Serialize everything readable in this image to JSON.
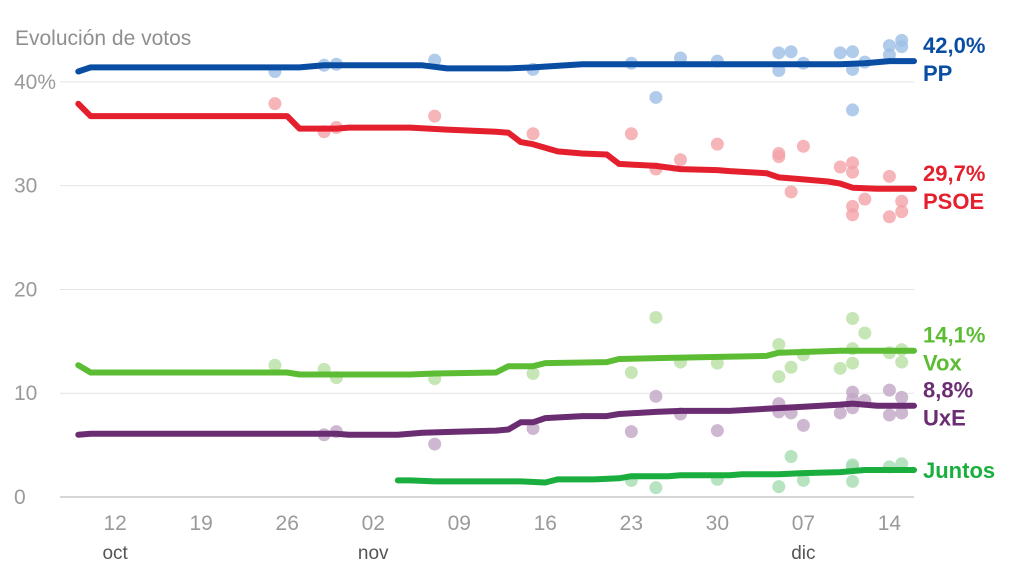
{
  "chart_data": {
    "type": "line",
    "title": "Evolución de votos",
    "ylim": [
      0,
      45
    ],
    "xlim": [
      "2023-10-08",
      "2023-12-16"
    ],
    "grid": "horizontal",
    "y_ticks": [
      {
        "value": 40,
        "label": "40%"
      },
      {
        "value": 30,
        "label": "30"
      },
      {
        "value": 20,
        "label": "20"
      },
      {
        "value": 10,
        "label": "10"
      },
      {
        "value": 0,
        "label": "0"
      }
    ],
    "x_ticks": [
      {
        "date": "2023-10-12",
        "label": "12",
        "month": "oct"
      },
      {
        "date": "2023-10-19",
        "label": "19",
        "month": ""
      },
      {
        "date": "2023-10-26",
        "label": "26",
        "month": ""
      },
      {
        "date": "2023-11-02",
        "label": "02",
        "month": "nov"
      },
      {
        "date": "2023-11-09",
        "label": "09",
        "month": ""
      },
      {
        "date": "2023-11-16",
        "label": "16",
        "month": ""
      },
      {
        "date": "2023-11-23",
        "label": "23",
        "month": ""
      },
      {
        "date": "2023-11-30",
        "label": "30",
        "month": ""
      },
      {
        "date": "2023-12-07",
        "label": "07",
        "month": "dic"
      },
      {
        "date": "2023-12-14",
        "label": "14",
        "month": ""
      }
    ],
    "series": [
      {
        "name": "PP",
        "end_label": "42,0%",
        "color": "#0a4ea3",
        "dot_color": "#9dbfe6",
        "line": [
          [
            "2023-10-09",
            41.0
          ],
          [
            "2023-10-10",
            41.4
          ],
          [
            "2023-10-25",
            41.4
          ],
          [
            "2023-10-27",
            41.4
          ],
          [
            "2023-10-29",
            41.6
          ],
          [
            "2023-11-06",
            41.6
          ],
          [
            "2023-11-08",
            41.3
          ],
          [
            "2023-11-13",
            41.3
          ],
          [
            "2023-11-15",
            41.4
          ],
          [
            "2023-11-19",
            41.7
          ],
          [
            "2023-11-23",
            41.7
          ],
          [
            "2023-11-25",
            41.7
          ],
          [
            "2023-12-06",
            41.7
          ],
          [
            "2023-12-10",
            41.7
          ],
          [
            "2023-12-12",
            41.8
          ],
          [
            "2023-12-14",
            42.0
          ],
          [
            "2023-12-16",
            42.0
          ]
        ],
        "polls": [
          [
            "2023-10-25",
            41.0
          ],
          [
            "2023-10-29",
            41.6
          ],
          [
            "2023-10-30",
            41.7
          ],
          [
            "2023-11-07",
            42.1
          ],
          [
            "2023-11-15",
            41.2
          ],
          [
            "2023-11-23",
            41.8
          ],
          [
            "2023-11-25",
            38.5
          ],
          [
            "2023-11-27",
            42.3
          ],
          [
            "2023-11-30",
            42.0
          ],
          [
            "2023-12-05",
            42.8
          ],
          [
            "2023-12-05",
            41.1
          ],
          [
            "2023-12-06",
            42.9
          ],
          [
            "2023-12-07",
            41.8
          ],
          [
            "2023-12-10",
            42.8
          ],
          [
            "2023-12-11",
            42.9
          ],
          [
            "2023-12-11",
            41.2
          ],
          [
            "2023-12-11",
            37.3
          ],
          [
            "2023-12-12",
            41.9
          ],
          [
            "2023-12-14",
            43.5
          ],
          [
            "2023-12-14",
            42.6
          ],
          [
            "2023-12-15",
            44.0
          ],
          [
            "2023-12-15",
            43.4
          ]
        ]
      },
      {
        "name": "PSOE",
        "end_label": "29,7%",
        "color": "#e5202e",
        "dot_color": "#f2a3a8",
        "line": [
          [
            "2023-10-09",
            37.9
          ],
          [
            "2023-10-10",
            36.7
          ],
          [
            "2023-10-25",
            36.7
          ],
          [
            "2023-10-26",
            36.7
          ],
          [
            "2023-10-27",
            35.5
          ],
          [
            "2023-10-30",
            35.5
          ],
          [
            "2023-10-31",
            35.6
          ],
          [
            "2023-11-05",
            35.6
          ],
          [
            "2023-11-08",
            35.4
          ],
          [
            "2023-11-12",
            35.2
          ],
          [
            "2023-11-13",
            35.1
          ],
          [
            "2023-11-14",
            34.2
          ],
          [
            "2023-11-15",
            34.0
          ],
          [
            "2023-11-17",
            33.3
          ],
          [
            "2023-11-19",
            33.1
          ],
          [
            "2023-11-21",
            33.0
          ],
          [
            "2023-11-22",
            32.1
          ],
          [
            "2023-11-25",
            31.9
          ],
          [
            "2023-11-27",
            31.6
          ],
          [
            "2023-11-30",
            31.5
          ],
          [
            "2023-12-01",
            31.4
          ],
          [
            "2023-12-04",
            31.2
          ],
          [
            "2023-12-05",
            30.8
          ],
          [
            "2023-12-07",
            30.6
          ],
          [
            "2023-12-09",
            30.4
          ],
          [
            "2023-12-10",
            30.2
          ],
          [
            "2023-12-11",
            29.8
          ],
          [
            "2023-12-13",
            29.7
          ],
          [
            "2023-12-16",
            29.7
          ]
        ],
        "polls": [
          [
            "2023-10-25",
            37.9
          ],
          [
            "2023-10-29",
            35.2
          ],
          [
            "2023-10-30",
            35.6
          ],
          [
            "2023-11-07",
            36.7
          ],
          [
            "2023-11-15",
            35.0
          ],
          [
            "2023-11-23",
            35.0
          ],
          [
            "2023-11-25",
            31.6
          ],
          [
            "2023-11-27",
            32.5
          ],
          [
            "2023-11-30",
            34.0
          ],
          [
            "2023-12-05",
            33.1
          ],
          [
            "2023-12-05",
            32.8
          ],
          [
            "2023-12-06",
            29.4
          ],
          [
            "2023-12-07",
            33.8
          ],
          [
            "2023-12-10",
            31.8
          ],
          [
            "2023-12-11",
            32.2
          ],
          [
            "2023-12-11",
            31.3
          ],
          [
            "2023-12-11",
            28.0
          ],
          [
            "2023-12-11",
            27.2
          ],
          [
            "2023-12-12",
            28.7
          ],
          [
            "2023-12-14",
            30.9
          ],
          [
            "2023-12-14",
            27.0
          ],
          [
            "2023-12-15",
            28.5
          ],
          [
            "2023-12-15",
            27.5
          ]
        ]
      },
      {
        "name": "Vox",
        "end_label": "14,1%",
        "color": "#5cbd35",
        "dot_color": "#b9e0a4",
        "line": [
          [
            "2023-10-09",
            12.7
          ],
          [
            "2023-10-10",
            12.0
          ],
          [
            "2023-10-26",
            12.0
          ],
          [
            "2023-10-27",
            11.8
          ],
          [
            "2023-11-05",
            11.8
          ],
          [
            "2023-11-07",
            11.9
          ],
          [
            "2023-11-12",
            12.0
          ],
          [
            "2023-11-13",
            12.6
          ],
          [
            "2023-11-15",
            12.6
          ],
          [
            "2023-11-16",
            12.9
          ],
          [
            "2023-11-21",
            13.0
          ],
          [
            "2023-11-22",
            13.3
          ],
          [
            "2023-11-26",
            13.4
          ],
          [
            "2023-12-04",
            13.6
          ],
          [
            "2023-12-05",
            13.9
          ],
          [
            "2023-12-10",
            14.1
          ],
          [
            "2023-12-16",
            14.1
          ]
        ],
        "polls": [
          [
            "2023-10-25",
            12.7
          ],
          [
            "2023-10-29",
            12.3
          ],
          [
            "2023-10-30",
            11.5
          ],
          [
            "2023-11-07",
            11.4
          ],
          [
            "2023-11-15",
            11.9
          ],
          [
            "2023-11-23",
            12.0
          ],
          [
            "2023-11-25",
            17.3
          ],
          [
            "2023-11-27",
            13.0
          ],
          [
            "2023-11-30",
            12.9
          ],
          [
            "2023-12-05",
            14.7
          ],
          [
            "2023-12-05",
            11.6
          ],
          [
            "2023-12-06",
            12.5
          ],
          [
            "2023-12-07",
            13.7
          ],
          [
            "2023-12-10",
            12.4
          ],
          [
            "2023-12-11",
            17.2
          ],
          [
            "2023-12-11",
            14.3
          ],
          [
            "2023-12-11",
            12.9
          ],
          [
            "2023-12-12",
            15.8
          ],
          [
            "2023-12-14",
            13.9
          ],
          [
            "2023-12-15",
            13.0
          ],
          [
            "2023-12-15",
            14.2
          ]
        ]
      },
      {
        "name": "UxE",
        "end_label": "8,8%",
        "color": "#6b2d72",
        "dot_color": "#c2a6c6",
        "line": [
          [
            "2023-10-09",
            6.0
          ],
          [
            "2023-10-10",
            6.1
          ],
          [
            "2023-10-30",
            6.1
          ],
          [
            "2023-10-31",
            6.0
          ],
          [
            "2023-11-04",
            6.0
          ],
          [
            "2023-11-06",
            6.2
          ],
          [
            "2023-11-09",
            6.3
          ],
          [
            "2023-11-12",
            6.4
          ],
          [
            "2023-11-13",
            6.5
          ],
          [
            "2023-11-14",
            7.2
          ],
          [
            "2023-11-15",
            7.2
          ],
          [
            "2023-11-16",
            7.6
          ],
          [
            "2023-11-19",
            7.8
          ],
          [
            "2023-11-21",
            7.8
          ],
          [
            "2023-11-22",
            8.0
          ],
          [
            "2023-11-25",
            8.2
          ],
          [
            "2023-11-27",
            8.3
          ],
          [
            "2023-12-01",
            8.3
          ],
          [
            "2023-12-04",
            8.5
          ],
          [
            "2023-12-07",
            8.7
          ],
          [
            "2023-12-10",
            8.9
          ],
          [
            "2023-12-11",
            9.0
          ],
          [
            "2023-12-13",
            8.8
          ],
          [
            "2023-12-16",
            8.8
          ]
        ],
        "polls": [
          [
            "2023-10-29",
            6.0
          ],
          [
            "2023-10-30",
            6.3
          ],
          [
            "2023-11-07",
            5.1
          ],
          [
            "2023-11-15",
            6.6
          ],
          [
            "2023-11-23",
            6.3
          ],
          [
            "2023-11-25",
            9.7
          ],
          [
            "2023-11-27",
            8.0
          ],
          [
            "2023-11-30",
            6.4
          ],
          [
            "2023-12-05",
            9.0
          ],
          [
            "2023-12-05",
            8.2
          ],
          [
            "2023-12-06",
            8.1
          ],
          [
            "2023-12-07",
            6.9
          ],
          [
            "2023-12-10",
            8.1
          ],
          [
            "2023-12-11",
            10.1
          ],
          [
            "2023-12-11",
            9.4
          ],
          [
            "2023-12-11",
            8.6
          ],
          [
            "2023-12-12",
            9.3
          ],
          [
            "2023-12-14",
            10.3
          ],
          [
            "2023-12-14",
            7.9
          ],
          [
            "2023-12-15",
            9.6
          ],
          [
            "2023-12-15",
            8.1
          ]
        ]
      },
      {
        "name": "Juntos",
        "end_label": "",
        "color": "#1aae3f",
        "dot_color": "#a5dcb1",
        "line": [
          [
            "2023-11-04",
            1.6
          ],
          [
            "2023-11-05",
            1.6
          ],
          [
            "2023-11-07",
            1.5
          ],
          [
            "2023-11-14",
            1.5
          ],
          [
            "2023-11-16",
            1.4
          ],
          [
            "2023-11-17",
            1.7
          ],
          [
            "2023-11-20",
            1.7
          ],
          [
            "2023-11-22",
            1.8
          ],
          [
            "2023-11-23",
            2.0
          ],
          [
            "2023-11-26",
            2.0
          ],
          [
            "2023-11-27",
            2.1
          ],
          [
            "2023-12-01",
            2.1
          ],
          [
            "2023-12-02",
            2.2
          ],
          [
            "2023-12-05",
            2.2
          ],
          [
            "2023-12-07",
            2.3
          ],
          [
            "2023-12-10",
            2.4
          ],
          [
            "2023-12-12",
            2.6
          ],
          [
            "2023-12-14",
            2.6
          ],
          [
            "2023-12-16",
            2.6
          ]
        ],
        "polls": [
          [
            "2023-11-23",
            1.6
          ],
          [
            "2023-11-25",
            0.9
          ],
          [
            "2023-11-30",
            1.7
          ],
          [
            "2023-12-05",
            1.0
          ],
          [
            "2023-12-06",
            3.9
          ],
          [
            "2023-12-07",
            1.6
          ],
          [
            "2023-12-11",
            3.1
          ],
          [
            "2023-12-11",
            2.9
          ],
          [
            "2023-12-11",
            1.5
          ],
          [
            "2023-12-14",
            2.9
          ],
          [
            "2023-12-15",
            3.2
          ]
        ]
      }
    ]
  }
}
